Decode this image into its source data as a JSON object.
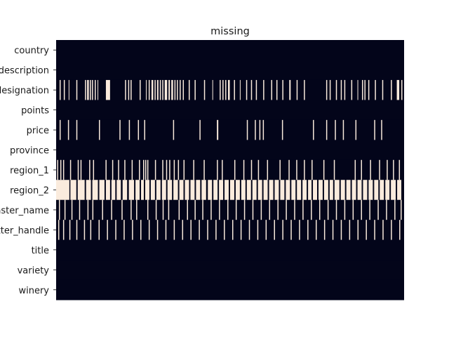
{
  "chart_data": {
    "type": "heatmap",
    "title": "missing",
    "xlabel": "",
    "ylabel": "",
    "grid": false,
    "legend": "none",
    "colors": {
      "present": "#03051a",
      "missing": "#faebdd"
    },
    "rows": [
      {
        "label": "country",
        "missing_fraction": 0.0005,
        "segments": []
      },
      {
        "label": "description",
        "missing_fraction": 0.0,
        "segments": []
      },
      {
        "label": "designation",
        "missing_fraction": 0.29,
        "segments": [
          [
            0.01,
            0.013
          ],
          [
            0.022,
            0.025
          ],
          [
            0.036,
            0.038
          ],
          [
            0.058,
            0.061
          ],
          [
            0.083,
            0.086
          ],
          [
            0.089,
            0.094
          ],
          [
            0.097,
            0.1
          ],
          [
            0.103,
            0.106
          ],
          [
            0.111,
            0.114
          ],
          [
            0.119,
            0.121
          ],
          [
            0.143,
            0.155
          ],
          [
            0.198,
            0.201
          ],
          [
            0.207,
            0.21
          ],
          [
            0.214,
            0.217
          ],
          [
            0.24,
            0.243
          ],
          [
            0.258,
            0.26
          ],
          [
            0.266,
            0.269
          ],
          [
            0.274,
            0.279
          ],
          [
            0.283,
            0.286
          ],
          [
            0.29,
            0.294
          ],
          [
            0.298,
            0.301
          ],
          [
            0.305,
            0.308
          ],
          [
            0.312,
            0.319
          ],
          [
            0.323,
            0.327
          ],
          [
            0.331,
            0.336
          ],
          [
            0.34,
            0.343
          ],
          [
            0.347,
            0.35
          ],
          [
            0.355,
            0.358
          ],
          [
            0.364,
            0.367
          ],
          [
            0.381,
            0.384
          ],
          [
            0.398,
            0.401
          ],
          [
            0.425,
            0.428
          ],
          [
            0.449,
            0.451
          ],
          [
            0.47,
            0.473
          ],
          [
            0.478,
            0.481
          ],
          [
            0.486,
            0.489
          ],
          [
            0.494,
            0.499
          ],
          [
            0.511,
            0.514
          ],
          [
            0.528,
            0.53
          ],
          [
            0.546,
            0.549
          ],
          [
            0.56,
            0.563
          ],
          [
            0.574,
            0.577
          ],
          [
            0.595,
            0.598
          ],
          [
            0.618,
            0.621
          ],
          [
            0.633,
            0.636
          ],
          [
            0.65,
            0.653
          ],
          [
            0.67,
            0.674
          ],
          [
            0.691,
            0.694
          ],
          [
            0.712,
            0.715
          ],
          [
            0.776,
            0.779
          ],
          [
            0.786,
            0.789
          ],
          [
            0.804,
            0.807
          ],
          [
            0.818,
            0.821
          ],
          [
            0.828,
            0.831
          ],
          [
            0.848,
            0.851
          ],
          [
            0.866,
            0.868
          ],
          [
            0.879,
            0.882
          ],
          [
            0.886,
            0.889
          ],
          [
            0.897,
            0.9
          ],
          [
            0.916,
            0.919
          ],
          [
            0.937,
            0.94
          ],
          [
            0.962,
            0.965
          ],
          [
            0.979,
            0.986
          ],
          [
            0.992,
            0.995
          ]
        ]
      },
      {
        "label": "points",
        "missing_fraction": 0.0,
        "segments": []
      },
      {
        "label": "price",
        "missing_fraction": 0.07,
        "segments": [
          [
            0.01,
            0.013
          ],
          [
            0.034,
            0.037
          ],
          [
            0.058,
            0.061
          ],
          [
            0.123,
            0.126
          ],
          [
            0.182,
            0.185
          ],
          [
            0.209,
            0.212
          ],
          [
            0.235,
            0.238
          ],
          [
            0.253,
            0.256
          ],
          [
            0.336,
            0.339
          ],
          [
            0.412,
            0.415
          ],
          [
            0.462,
            0.466
          ],
          [
            0.548,
            0.551
          ],
          [
            0.571,
            0.574
          ],
          [
            0.584,
            0.587
          ],
          [
            0.594,
            0.597
          ],
          [
            0.649,
            0.652
          ],
          [
            0.738,
            0.741
          ],
          [
            0.776,
            0.779
          ],
          [
            0.801,
            0.804
          ],
          [
            0.824,
            0.827
          ],
          [
            0.86,
            0.863
          ],
          [
            0.914,
            0.917
          ],
          [
            0.934,
            0.937
          ]
        ]
      },
      {
        "label": "province",
        "missing_fraction": 0.0005,
        "segments": []
      },
      {
        "label": "region_1",
        "missing_fraction": 0.16,
        "segments": [
          [
            0.003,
            0.006
          ],
          [
            0.012,
            0.015
          ],
          [
            0.02,
            0.023
          ],
          [
            0.04,
            0.043
          ],
          [
            0.062,
            0.065
          ],
          [
            0.07,
            0.073
          ],
          [
            0.095,
            0.098
          ],
          [
            0.106,
            0.109
          ],
          [
            0.142,
            0.145
          ],
          [
            0.161,
            0.164
          ],
          [
            0.178,
            0.181
          ],
          [
            0.196,
            0.199
          ],
          [
            0.217,
            0.22
          ],
          [
            0.238,
            0.241
          ],
          [
            0.25,
            0.253
          ],
          [
            0.256,
            0.259
          ],
          [
            0.262,
            0.265
          ],
          [
            0.284,
            0.287
          ],
          [
            0.305,
            0.308
          ],
          [
            0.316,
            0.319
          ],
          [
            0.325,
            0.328
          ],
          [
            0.338,
            0.341
          ],
          [
            0.35,
            0.353
          ],
          [
            0.366,
            0.369
          ],
          [
            0.394,
            0.397
          ],
          [
            0.424,
            0.427
          ],
          [
            0.462,
            0.465
          ],
          [
            0.476,
            0.479
          ],
          [
            0.512,
            0.515
          ],
          [
            0.538,
            0.541
          ],
          [
            0.56,
            0.563
          ],
          [
            0.58,
            0.583
          ],
          [
            0.606,
            0.609
          ],
          [
            0.642,
            0.645
          ],
          [
            0.668,
            0.671
          ],
          [
            0.69,
            0.693
          ],
          [
            0.712,
            0.715
          ],
          [
            0.734,
            0.737
          ],
          [
            0.768,
            0.771
          ],
          [
            0.798,
            0.801
          ],
          [
            0.858,
            0.861
          ],
          [
            0.876,
            0.879
          ],
          [
            0.902,
            0.905
          ],
          [
            0.928,
            0.931
          ],
          [
            0.95,
            0.953
          ],
          [
            0.968,
            0.971
          ],
          [
            0.985,
            0.988
          ]
        ]
      },
      {
        "label": "region_2",
        "missing_fraction": 0.61,
        "segments": [
          [
            0.0,
            0.038
          ],
          [
            0.041,
            0.058
          ],
          [
            0.062,
            0.082
          ],
          [
            0.086,
            0.1
          ],
          [
            0.104,
            0.12
          ],
          [
            0.124,
            0.139
          ],
          [
            0.143,
            0.155
          ],
          [
            0.159,
            0.17
          ],
          [
            0.174,
            0.186
          ],
          [
            0.191,
            0.204
          ],
          [
            0.209,
            0.224
          ],
          [
            0.228,
            0.24
          ],
          [
            0.244,
            0.252
          ],
          [
            0.256,
            0.268
          ],
          [
            0.272,
            0.284
          ],
          [
            0.288,
            0.3
          ],
          [
            0.304,
            0.316
          ],
          [
            0.32,
            0.333
          ],
          [
            0.337,
            0.35
          ],
          [
            0.354,
            0.366
          ],
          [
            0.37,
            0.382
          ],
          [
            0.386,
            0.398
          ],
          [
            0.402,
            0.414
          ],
          [
            0.418,
            0.431
          ],
          [
            0.436,
            0.448
          ],
          [
            0.452,
            0.464
          ],
          [
            0.468,
            0.48
          ],
          [
            0.484,
            0.496
          ],
          [
            0.5,
            0.512
          ],
          [
            0.516,
            0.528
          ],
          [
            0.532,
            0.544
          ],
          [
            0.548,
            0.56
          ],
          [
            0.564,
            0.576
          ],
          [
            0.58,
            0.592
          ],
          [
            0.596,
            0.608
          ],
          [
            0.612,
            0.624
          ],
          [
            0.628,
            0.64
          ],
          [
            0.644,
            0.656
          ],
          [
            0.66,
            0.672
          ],
          [
            0.676,
            0.688
          ],
          [
            0.692,
            0.704
          ],
          [
            0.708,
            0.72
          ],
          [
            0.724,
            0.734
          ],
          [
            0.738,
            0.75
          ],
          [
            0.754,
            0.766
          ],
          [
            0.77,
            0.782
          ],
          [
            0.786,
            0.796
          ],
          [
            0.8,
            0.814
          ],
          [
            0.818,
            0.83
          ],
          [
            0.834,
            0.846
          ],
          [
            0.85,
            0.862
          ],
          [
            0.866,
            0.878
          ],
          [
            0.882,
            0.894
          ],
          [
            0.898,
            0.91
          ],
          [
            0.914,
            0.926
          ],
          [
            0.93,
            0.942
          ],
          [
            0.946,
            0.958
          ],
          [
            0.962,
            0.976
          ],
          [
            0.98,
            0.992
          ]
        ]
      },
      {
        "label": "taster_name",
        "missing_fraction": 0.2,
        "segments": [
          [
            0.008,
            0.011
          ],
          [
            0.024,
            0.027
          ],
          [
            0.044,
            0.047
          ],
          [
            0.066,
            0.069
          ],
          [
            0.09,
            0.093
          ],
          [
            0.104,
            0.107
          ],
          [
            0.132,
            0.135
          ],
          [
            0.158,
            0.161
          ],
          [
            0.188,
            0.191
          ],
          [
            0.214,
            0.217
          ],
          [
            0.23,
            0.233
          ],
          [
            0.262,
            0.265
          ],
          [
            0.286,
            0.289
          ],
          [
            0.306,
            0.309
          ],
          [
            0.322,
            0.325
          ],
          [
            0.352,
            0.355
          ],
          [
            0.376,
            0.379
          ],
          [
            0.398,
            0.401
          ],
          [
            0.42,
            0.423
          ],
          [
            0.444,
            0.447
          ],
          [
            0.468,
            0.471
          ],
          [
            0.492,
            0.495
          ],
          [
            0.516,
            0.519
          ],
          [
            0.54,
            0.543
          ],
          [
            0.564,
            0.567
          ],
          [
            0.588,
            0.591
          ],
          [
            0.612,
            0.615
          ],
          [
            0.636,
            0.639
          ],
          [
            0.66,
            0.663
          ],
          [
            0.684,
            0.687
          ],
          [
            0.708,
            0.711
          ],
          [
            0.732,
            0.735
          ],
          [
            0.756,
            0.759
          ],
          [
            0.78,
            0.783
          ],
          [
            0.804,
            0.807
          ],
          [
            0.828,
            0.831
          ],
          [
            0.852,
            0.855
          ],
          [
            0.876,
            0.879
          ],
          [
            0.9,
            0.903
          ],
          [
            0.924,
            0.927
          ],
          [
            0.948,
            0.951
          ],
          [
            0.972,
            0.975
          ],
          [
            0.99,
            0.993
          ]
        ]
      },
      {
        "label": "taster_twitter_handle",
        "missing_fraction": 0.24,
        "segments": [
          [
            0.006,
            0.009
          ],
          [
            0.02,
            0.023
          ],
          [
            0.038,
            0.041
          ],
          [
            0.058,
            0.061
          ],
          [
            0.08,
            0.083
          ],
          [
            0.098,
            0.101
          ],
          [
            0.122,
            0.125
          ],
          [
            0.146,
            0.149
          ],
          [
            0.17,
            0.173
          ],
          [
            0.194,
            0.197
          ],
          [
            0.218,
            0.221
          ],
          [
            0.242,
            0.245
          ],
          [
            0.266,
            0.269
          ],
          [
            0.29,
            0.293
          ],
          [
            0.314,
            0.317
          ],
          [
            0.338,
            0.341
          ],
          [
            0.362,
            0.365
          ],
          [
            0.386,
            0.389
          ],
          [
            0.41,
            0.413
          ],
          [
            0.434,
            0.437
          ],
          [
            0.458,
            0.461
          ],
          [
            0.482,
            0.485
          ],
          [
            0.506,
            0.509
          ],
          [
            0.53,
            0.533
          ],
          [
            0.554,
            0.557
          ],
          [
            0.578,
            0.581
          ],
          [
            0.602,
            0.605
          ],
          [
            0.626,
            0.629
          ],
          [
            0.65,
            0.653
          ],
          [
            0.674,
            0.677
          ],
          [
            0.698,
            0.701
          ],
          [
            0.722,
            0.725
          ],
          [
            0.746,
            0.749
          ],
          [
            0.77,
            0.773
          ],
          [
            0.794,
            0.797
          ],
          [
            0.818,
            0.821
          ],
          [
            0.842,
            0.845
          ],
          [
            0.866,
            0.869
          ],
          [
            0.89,
            0.893
          ],
          [
            0.914,
            0.917
          ],
          [
            0.938,
            0.941
          ],
          [
            0.962,
            0.965
          ],
          [
            0.986,
            0.989
          ]
        ]
      },
      {
        "label": "title",
        "missing_fraction": 0.0,
        "segments": []
      },
      {
        "label": "variety",
        "missing_fraction": 0.0,
        "segments": []
      },
      {
        "label": "winery",
        "missing_fraction": 0.0,
        "segments": []
      }
    ]
  }
}
